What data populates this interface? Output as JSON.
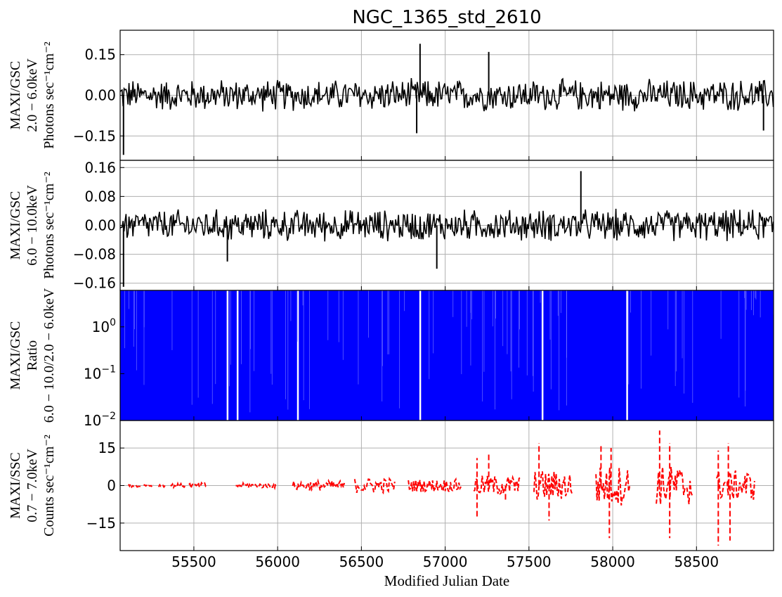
{
  "chart_data": {
    "type": "line",
    "title": "NGC_1365_std_2610",
    "xlabel": "Modified Julian Date",
    "xlim": [
      55060,
      58960
    ],
    "x_ticks": [
      "55500",
      "56000",
      "56500",
      "57000",
      "57500",
      "58000",
      "58500"
    ],
    "grid": true,
    "panels": [
      {
        "id": "gsc_low",
        "scale": "linear",
        "ylabel_lines": [
          "MAXI/GSC",
          "2.0 − 6.0keV",
          "Photons sec⁻¹cm⁻²"
        ],
        "ylim": [
          -0.24,
          0.24
        ],
        "y_ticks": [
          {
            "v": 0.15,
            "label": "0.15"
          },
          {
            "v": 0.0,
            "label": "0.00"
          },
          {
            "v": -0.15,
            "label": "−0.15"
          }
        ],
        "series": [
          {
            "color": "#000000",
            "style": "noise",
            "x_start": 55060,
            "x_end": 58960,
            "center": 0.0,
            "amplitude": 0.06,
            "spikes": [
              [
                55080,
                -0.22
              ],
              [
                56830,
                -0.14
              ],
              [
                56850,
                0.19
              ],
              [
                57260,
                0.16
              ],
              [
                58900,
                -0.13
              ]
            ]
          }
        ]
      },
      {
        "id": "gsc_high",
        "scale": "linear",
        "ylabel_lines": [
          "MAXI/GSC",
          "6.0 − 10.0keV",
          "Photons sec⁻¹cm⁻²"
        ],
        "ylim": [
          -0.18,
          0.18
        ],
        "y_ticks": [
          {
            "v": 0.16,
            "label": "0.16"
          },
          {
            "v": 0.08,
            "label": "0.08"
          },
          {
            "v": 0.0,
            "label": "0.00"
          },
          {
            "v": -0.08,
            "label": "−0.08"
          },
          {
            "v": -0.16,
            "label": "−0.16"
          }
        ],
        "series": [
          {
            "color": "#000000",
            "style": "noise",
            "x_start": 55060,
            "x_end": 58960,
            "center": 0.0,
            "amplitude": 0.045,
            "spikes": [
              [
                55080,
                -0.17
              ],
              [
                56950,
                -0.12
              ],
              [
                57810,
                0.15
              ],
              [
                55700,
                -0.1
              ]
            ]
          }
        ]
      },
      {
        "id": "ratio",
        "scale": "log",
        "ylabel_lines": [
          "MAXI/GSC",
          "Ratio",
          "6.0 − 10.0/2.0 − 6.0keV"
        ],
        "ylim": [
          0.01,
          6
        ],
        "y_ticks": [
          {
            "v": 1,
            "label": "10",
            "exp": "0"
          },
          {
            "v": 0.1,
            "label": "10",
            "exp": "−1"
          },
          {
            "v": 0.01,
            "label": "10",
            "exp": "−2"
          }
        ],
        "series": [
          {
            "color": "#0000ff",
            "style": "fill",
            "x_start": 55060,
            "x_end": 58960,
            "gaps": [
              55700,
              55760,
              56120,
              56850,
              57580,
              58085
            ]
          }
        ]
      },
      {
        "id": "ssc",
        "scale": "linear",
        "ylabel_lines": [
          "MAXI/SSC",
          "0.7 − 7.0keV",
          "Counts sec⁻¹cm⁻²"
        ],
        "ylim": [
          -26,
          26
        ],
        "y_ticks": [
          {
            "v": 15,
            "label": "15"
          },
          {
            "v": 0,
            "label": "0"
          },
          {
            "v": -15,
            "label": "−15"
          }
        ],
        "series": [
          {
            "color": "#ff0000",
            "style": "segments",
            "segments": [
              {
                "x0": 55110,
                "x1": 55180,
                "amp": 0.6
              },
              {
                "x0": 55200,
                "x1": 55260,
                "amp": 0.6
              },
              {
                "x0": 55290,
                "x1": 55330,
                "amp": 0.6
              },
              {
                "x0": 55360,
                "x1": 55450,
                "amp": 0.8
              },
              {
                "x0": 55470,
                "x1": 55580,
                "amp": 1.2
              },
              {
                "x0": 55750,
                "x1": 55990,
                "amp": 1.0
              },
              {
                "x0": 56090,
                "x1": 56400,
                "amp": 2.0
              },
              {
                "x0": 56460,
                "x1": 56700,
                "amp": 3.0
              },
              {
                "x0": 56780,
                "x1": 57100,
                "amp": 2.5
              },
              {
                "x0": 57170,
                "x1": 57450,
                "amp": 4.0
              },
              {
                "x0": 57530,
                "x1": 57760,
                "amp": 6.0
              },
              {
                "x0": 57900,
                "x1": 58110,
                "amp": 8.0
              },
              {
                "x0": 58260,
                "x1": 58480,
                "amp": 8.0
              },
              {
                "x0": 58620,
                "x1": 58850,
                "amp": 6.0
              }
            ],
            "spikes": [
              [
                57190,
                -13
              ],
              [
                57190,
                11
              ],
              [
                57260,
                13
              ],
              [
                57560,
                17
              ],
              [
                57620,
                -14
              ],
              [
                57930,
                16
              ],
              [
                57980,
                -21
              ],
              [
                57990,
                15
              ],
              [
                58280,
                22
              ],
              [
                58340,
                17
              ],
              [
                58340,
                -21
              ],
              [
                58630,
                14
              ],
              [
                58630,
                -24
              ],
              [
                58690,
                17
              ],
              [
                58700,
                -22
              ],
              [
                57360,
                -6
              ]
            ]
          }
        ]
      }
    ]
  }
}
